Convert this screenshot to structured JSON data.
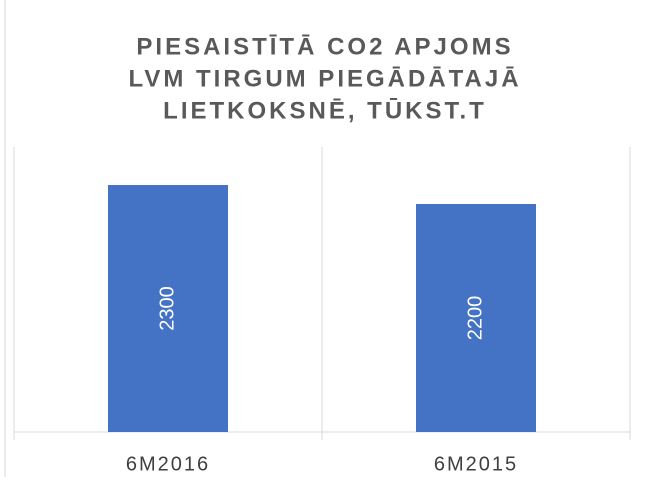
{
  "chart_data": {
    "type": "bar",
    "title": [
      "PIESAISTĪTĀ CO2 APJOMS",
      "LVM TIRGUM PIEGĀDĀTAJĀ",
      "LIETKOKSNĒ, TŪKST.T"
    ],
    "categories": [
      "6M2016",
      "6M2015"
    ],
    "values": [
      2300,
      2200
    ],
    "color": "#4472c4",
    "ylim": [
      1000,
      2500
    ]
  }
}
